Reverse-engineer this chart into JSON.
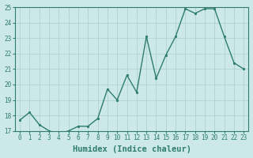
{
  "x": [
    0,
    1,
    2,
    3,
    4,
    5,
    6,
    7,
    8,
    9,
    10,
    11,
    12,
    13,
    14,
    15,
    16,
    17,
    18,
    19,
    20,
    21,
    22,
    23
  ],
  "y": [
    17.7,
    18.2,
    17.4,
    17.0,
    16.8,
    17.0,
    17.3,
    17.3,
    17.8,
    19.7,
    19.0,
    20.6,
    19.5,
    23.1,
    20.4,
    21.9,
    23.1,
    24.9,
    24.6,
    24.9,
    24.9,
    23.1,
    21.4,
    21.0
  ],
  "line_color": "#2e7d6e",
  "marker": "o",
  "marker_size": 1.8,
  "line_width": 1.0,
  "bg_color": "#cce8e8",
  "grid_color": "#aacece",
  "xlabel": "Humidex (Indice chaleur)",
  "ylim": [
    17,
    25
  ],
  "xlim_min": -0.5,
  "xlim_max": 23.5,
  "yticks": [
    17,
    18,
    19,
    20,
    21,
    22,
    23,
    24,
    25
  ],
  "xticks": [
    0,
    1,
    2,
    3,
    4,
    5,
    6,
    7,
    8,
    9,
    10,
    11,
    12,
    13,
    14,
    15,
    16,
    17,
    18,
    19,
    20,
    21,
    22,
    23
  ],
  "tick_label_fontsize": 5.5,
  "xlabel_fontsize": 7.5,
  "tick_color": "#2e7d6e",
  "spine_color": "#2e7d6e"
}
